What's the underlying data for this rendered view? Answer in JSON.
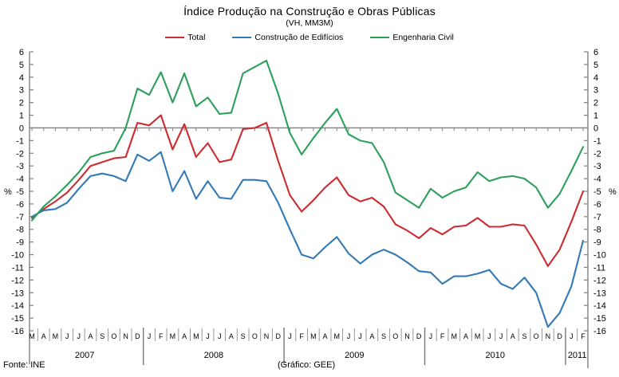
{
  "header": {
    "title": "Índice Produção na Construção e Obras Públicas",
    "subtitle": "(VH, MM3M)"
  },
  "legend": [
    {
      "label": "Total",
      "color": "#cc2c30"
    },
    {
      "label": "Construção de Edifícios",
      "color": "#3379b5"
    },
    {
      "label": "Engenharia Civil",
      "color": "#2ca05a"
    }
  ],
  "footer": {
    "source": "Fonte: INE",
    "credit": "(Gráfico: GEE)"
  },
  "chart_data": {
    "type": "line",
    "title": "Índice Produção na Construção e Obras Públicas",
    "subtitle": "(VH, MM3M)",
    "ylabel_left": "%",
    "ylabel_right": "%",
    "ylim": [
      -16,
      6
    ],
    "ytick_step": 1,
    "grid": false,
    "zero_axis": true,
    "legend_position": "top",
    "axis_color": "#808080",
    "categories": [
      "M",
      "A",
      "M",
      "J",
      "J",
      "A",
      "S",
      "O",
      "N",
      "D",
      "J",
      "F",
      "M",
      "A",
      "M",
      "J",
      "J",
      "A",
      "S",
      "O",
      "N",
      "D",
      "J",
      "F",
      "M",
      "A",
      "M",
      "J",
      "J",
      "A",
      "S",
      "O",
      "N",
      "D",
      "J",
      "F",
      "M",
      "A",
      "M",
      "J",
      "J",
      "A",
      "S",
      "O",
      "N",
      "D",
      "J",
      "F"
    ],
    "year_groups": [
      {
        "label": "2007",
        "start": 0,
        "end": 9
      },
      {
        "label": "2008",
        "start": 10,
        "end": 21
      },
      {
        "label": "2009",
        "start": 22,
        "end": 33
      },
      {
        "label": "2010",
        "start": 34,
        "end": 45
      },
      {
        "label": "2011",
        "start": 46,
        "end": 47
      }
    ],
    "series": [
      {
        "name": "Total",
        "color": "#cc2c30",
        "values": [
          -7.1,
          -6.4,
          -5.8,
          -5.1,
          -4.1,
          -3.0,
          -2.7,
          -2.4,
          -2.3,
          0.4,
          0.2,
          1.0,
          -1.7,
          0.3,
          -2.3,
          -1.2,
          -2.7,
          -2.5,
          -0.1,
          0.0,
          0.4,
          -2.6,
          -5.3,
          -6.6,
          -5.7,
          -4.7,
          -3.9,
          -5.3,
          -5.8,
          -5.5,
          -6.2,
          -7.6,
          -8.1,
          -8.7,
          -7.9,
          -8.4,
          -7.8,
          -7.7,
          -7.1,
          -7.8,
          -7.8,
          -7.6,
          -7.7,
          -9.2,
          -10.9,
          -9.6,
          -7.4,
          -5.0
        ]
      },
      {
        "name": "Construção de Edifícios",
        "color": "#3379b5",
        "values": [
          -7.0,
          -6.5,
          -6.4,
          -5.9,
          -4.8,
          -3.8,
          -3.6,
          -3.8,
          -4.2,
          -2.1,
          -2.6,
          -1.9,
          -5.0,
          -3.4,
          -5.6,
          -4.2,
          -5.5,
          -5.6,
          -4.1,
          -4.1,
          -4.2,
          -5.9,
          -8.0,
          -10.0,
          -10.3,
          -9.4,
          -8.6,
          -9.9,
          -10.7,
          -10.0,
          -9.6,
          -10.0,
          -10.6,
          -11.3,
          -11.4,
          -12.3,
          -11.7,
          -11.7,
          -11.5,
          -11.2,
          -12.3,
          -12.7,
          -11.8,
          -13.0,
          -15.7,
          -14.6,
          -12.5,
          -8.9
        ]
      },
      {
        "name": "Engenharia Civil",
        "color": "#2ca05a",
        "values": [
          -7.3,
          -6.2,
          -5.4,
          -4.5,
          -3.5,
          -2.3,
          -2.0,
          -1.8,
          0.0,
          3.1,
          2.6,
          4.4,
          2.0,
          4.3,
          1.7,
          2.4,
          1.1,
          1.2,
          4.3,
          4.8,
          5.3,
          2.7,
          -0.4,
          -2.1,
          -0.8,
          0.4,
          1.5,
          -0.5,
          -1.0,
          -1.2,
          -2.7,
          -5.1,
          -5.7,
          -6.3,
          -4.8,
          -5.5,
          -5.0,
          -4.7,
          -3.5,
          -4.2,
          -3.9,
          -3.8,
          -4.0,
          -4.7,
          -6.3,
          -5.2,
          -3.4,
          -1.5
        ]
      }
    ]
  }
}
